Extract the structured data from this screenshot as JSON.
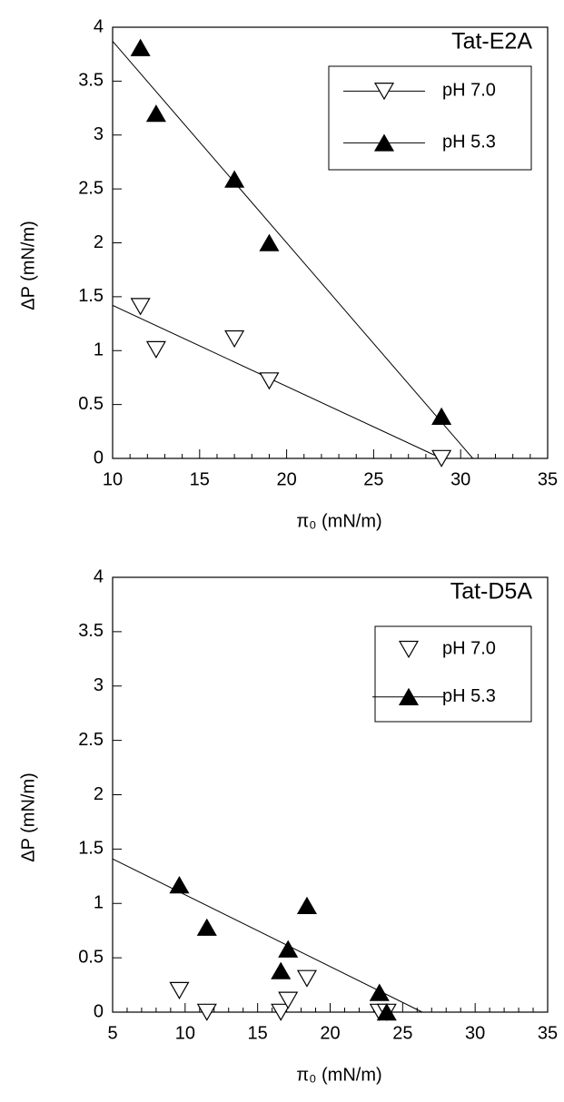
{
  "chart_data": [
    {
      "type": "scatter",
      "title": "Tat-E2A",
      "x_label": "π₀ (mN/m)",
      "y_label": "ΔP (mN/m)",
      "xlim": [
        10,
        35
      ],
      "xticks": [
        10,
        15,
        20,
        25,
        30,
        35
      ],
      "ylim": [
        0,
        4
      ],
      "yticks": [
        0,
        0.5,
        1,
        1.5,
        2,
        2.5,
        3,
        3.5,
        4
      ],
      "legend": "upper right",
      "series": [
        {
          "name": "pH 7.0",
          "marker": "open-down-triangle",
          "color": "#000000",
          "x": [
            11.6,
            12.5,
            17.0,
            19.0,
            28.9
          ],
          "values": [
            1.41,
            1.01,
            1.11,
            0.72,
            0
          ],
          "fit_x": [
            10,
            28.9
          ],
          "fit_y": [
            1.42,
            0
          ]
        },
        {
          "name": "pH 5.3",
          "marker": "filled-up-triangle",
          "color": "#000000",
          "x": [
            11.6,
            12.5,
            17.0,
            19.0,
            28.9
          ],
          "values": [
            3.81,
            3.2,
            2.59,
            2.0,
            0.39
          ],
          "fit_x": [
            10,
            30.7
          ],
          "fit_y": [
            3.87,
            0
          ]
        }
      ]
    },
    {
      "type": "scatter",
      "title": "Tat-D5A",
      "x_label": "π₀ (mN/m)",
      "y_label": "ΔP (mN/m)",
      "xlim": [
        5,
        35
      ],
      "xticks": [
        5,
        10,
        15,
        20,
        25,
        30,
        35
      ],
      "ylim": [
        0,
        4
      ],
      "yticks": [
        0,
        0.5,
        1,
        1.5,
        2,
        2.5,
        3,
        3.5,
        4
      ],
      "legend": "upper right",
      "series": [
        {
          "name": "pH 7.0",
          "marker": "open-down-triangle",
          "color": "#000000",
          "x": [
            9.6,
            11.5,
            16.6,
            17.1,
            18.4,
            23.4,
            23.9
          ],
          "values": [
            0.2,
            0,
            0,
            0.11,
            0.31,
            0,
            0
          ]
        },
        {
          "name": "pH 5.3",
          "marker": "filled-up-triangle",
          "color": "#000000",
          "x": [
            9.6,
            11.5,
            16.6,
            17.1,
            18.4,
            23.4,
            23.9
          ],
          "values": [
            1.17,
            0.78,
            0.38,
            0.58,
            0.98,
            0.18,
            0
          ],
          "fit_x": [
            5,
            26.35
          ],
          "fit_y": [
            1.41,
            0
          ]
        }
      ]
    }
  ]
}
